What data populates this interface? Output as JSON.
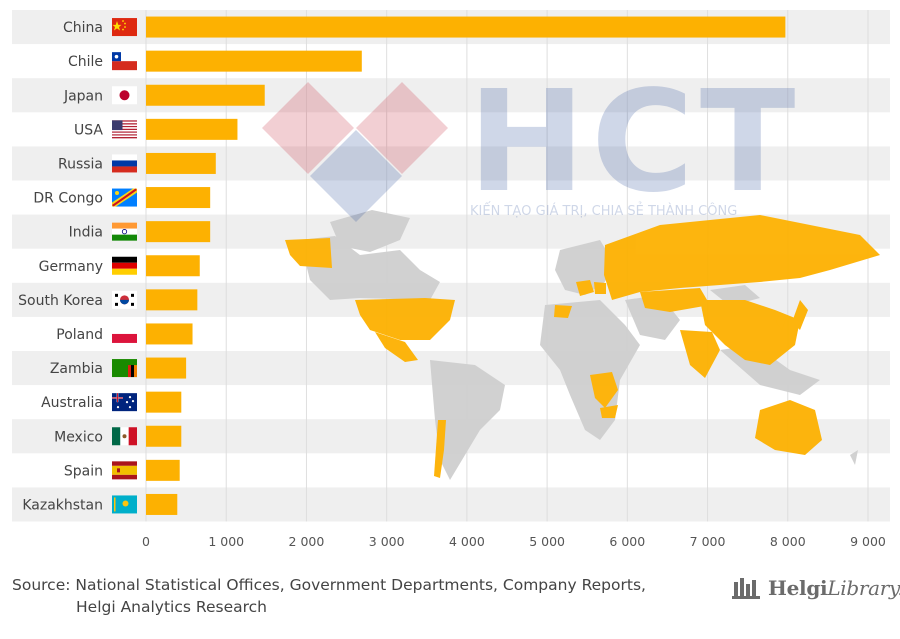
{
  "chart_data": {
    "type": "bar",
    "orientation": "horizontal",
    "categories": [
      "China",
      "Chile",
      "Japan",
      "USA",
      "Russia",
      "DR Congo",
      "India",
      "Germany",
      "South Korea",
      "Poland",
      "Zambia",
      "Australia",
      "Mexico",
      "Spain",
      "Kazakhstan"
    ],
    "values": [
      7970,
      2690,
      1480,
      1140,
      870,
      800,
      800,
      670,
      640,
      580,
      500,
      440,
      440,
      420,
      390
    ],
    "xlim": [
      0,
      9000
    ],
    "xticks": [
      0,
      1000,
      2000,
      3000,
      4000,
      5000,
      6000,
      7000,
      8000,
      9000
    ],
    "xtick_labels": [
      "0",
      "1 000",
      "2 000",
      "3 000",
      "4 000",
      "5 000",
      "6 000",
      "7 000",
      "8 000",
      "9 000"
    ],
    "bar_color": "#FDB101",
    "grid": true,
    "title": "",
    "xlabel": "",
    "ylabel": ""
  },
  "flags": [
    "china-flag-icon",
    "chile-flag-icon",
    "japan-flag-icon",
    "usa-flag-icon",
    "russia-flag-icon",
    "dr-congo-flag-icon",
    "india-flag-icon",
    "germany-flag-icon",
    "south-korea-flag-icon",
    "poland-flag-icon",
    "zambia-flag-icon",
    "australia-flag-icon",
    "mexico-flag-icon",
    "spain-flag-icon",
    "kazakhstan-flag-icon"
  ],
  "watermark": {
    "logo_text": "HCT",
    "tagline": "KIẾN TẠO GIÁ TRỊ, CHIA SẺ THÀNH CÔNG"
  },
  "source": {
    "line1": "Source: National Statistical Offices, Government Departments, Company Reports,",
    "line2": "Helgi Analytics Research"
  },
  "brand": {
    "name_bold": "Helgi",
    "name_light": "Library."
  }
}
